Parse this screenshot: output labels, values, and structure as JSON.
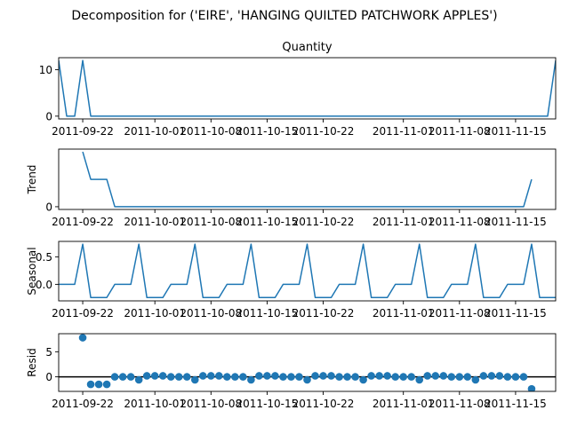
{
  "figure": {
    "suptitle": "Decomposition for ('EIRE', 'HANGING QUILTED PATCHWORK APPLES')"
  },
  "colors": {
    "line": "#1f77b4",
    "axis": "#000000",
    "background": "#ffffff"
  },
  "chart_data": [
    {
      "type": "line",
      "title": "Quantity",
      "ylabel": "",
      "x_start": "2011-09-19",
      "x_end": "2011-11-20",
      "xticks": [
        "2011-09-22",
        "2011-10-01",
        "2011-10-08",
        "2011-10-15",
        "2011-10-22",
        "2011-11-01",
        "2011-11-08",
        "2011-11-15"
      ],
      "yticks": [
        0,
        10
      ],
      "ylim": [
        -0.6,
        12.6
      ],
      "points": [
        [
          "2011-09-19",
          12
        ],
        [
          "2011-09-20",
          0
        ],
        [
          "2011-09-21",
          0
        ],
        [
          "2011-09-22",
          12
        ],
        [
          "2011-09-23",
          0
        ],
        [
          "2011-11-19",
          0
        ],
        [
          "2011-11-20",
          12
        ]
      ]
    },
    {
      "type": "line",
      "title": "",
      "ylabel": "Trend",
      "x_start": "2011-09-19",
      "x_end": "2011-11-20",
      "xticks": [
        "2011-09-22",
        "2011-10-01",
        "2011-10-08",
        "2011-10-15",
        "2011-10-22",
        "2011-11-01",
        "2011-11-08",
        "2011-11-15"
      ],
      "yticks": [
        0
      ],
      "ylim": [
        -0.17,
        3.6
      ],
      "points": [
        [
          "2011-09-22",
          3.43
        ],
        [
          "2011-09-23",
          1.71
        ],
        [
          "2011-09-24",
          1.71
        ],
        [
          "2011-09-25",
          1.71
        ],
        [
          "2011-09-26",
          0
        ],
        [
          "2011-11-16",
          0
        ],
        [
          "2011-11-17",
          1.71
        ]
      ]
    },
    {
      "type": "line",
      "title": "",
      "ylabel": "Seasonal",
      "x_start": "2011-09-19",
      "x_end": "2011-11-20",
      "xticks": [
        "2011-09-22",
        "2011-10-01",
        "2011-10-08",
        "2011-10-15",
        "2011-10-22",
        "2011-11-01",
        "2011-11-08",
        "2011-11-15"
      ],
      "yticks": [
        0.0,
        0.5
      ],
      "ylim": [
        -0.3,
        0.78
      ],
      "period": 7,
      "pattern": [
        0,
        0,
        0,
        0.73,
        -0.24,
        -0.24,
        -0.24
      ],
      "pattern_start": "2011-09-19"
    },
    {
      "type": "scatter",
      "title": "",
      "ylabel": "Resid",
      "x_start": "2011-09-19",
      "x_end": "2011-11-20",
      "xticks": [
        "2011-09-22",
        "2011-10-01",
        "2011-10-08",
        "2011-10-15",
        "2011-10-22",
        "2011-11-01",
        "2011-11-08",
        "2011-11-15"
      ],
      "yticks": [
        0,
        5
      ],
      "ylim": [
        -2.9,
        8.6
      ],
      "baseline": 0,
      "points": [
        [
          "2011-09-22",
          7.8
        ],
        [
          "2011-09-23",
          -1.5
        ],
        [
          "2011-09-24",
          -1.5
        ],
        [
          "2011-09-25",
          -1.5
        ],
        [
          "2011-09-26",
          0.0
        ],
        [
          "2011-09-27",
          0.0
        ],
        [
          "2011-09-28",
          0.0
        ],
        [
          "2011-09-29",
          -0.6
        ],
        [
          "2011-09-30",
          0.2
        ],
        [
          "2011-10-01",
          0.2
        ],
        [
          "2011-10-02",
          0.2
        ],
        [
          "2011-10-03",
          0.0
        ],
        [
          "2011-10-04",
          0.0
        ],
        [
          "2011-10-05",
          0.0
        ],
        [
          "2011-10-06",
          -0.6
        ],
        [
          "2011-10-07",
          0.2
        ],
        [
          "2011-10-08",
          0.2
        ],
        [
          "2011-10-09",
          0.2
        ],
        [
          "2011-10-10",
          0.0
        ],
        [
          "2011-10-11",
          0.0
        ],
        [
          "2011-10-12",
          0.0
        ],
        [
          "2011-10-13",
          -0.6
        ],
        [
          "2011-10-14",
          0.2
        ],
        [
          "2011-10-15",
          0.2
        ],
        [
          "2011-10-16",
          0.2
        ],
        [
          "2011-10-17",
          0.0
        ],
        [
          "2011-10-18",
          0.0
        ],
        [
          "2011-10-19",
          0.0
        ],
        [
          "2011-10-20",
          -0.6
        ],
        [
          "2011-10-21",
          0.2
        ],
        [
          "2011-10-22",
          0.2
        ],
        [
          "2011-10-23",
          0.2
        ],
        [
          "2011-10-24",
          0.0
        ],
        [
          "2011-10-25",
          0.0
        ],
        [
          "2011-10-26",
          0.0
        ],
        [
          "2011-10-27",
          -0.6
        ],
        [
          "2011-10-28",
          0.2
        ],
        [
          "2011-10-29",
          0.2
        ],
        [
          "2011-10-30",
          0.2
        ],
        [
          "2011-10-31",
          0.0
        ],
        [
          "2011-11-01",
          0.0
        ],
        [
          "2011-11-02",
          0.0
        ],
        [
          "2011-11-03",
          -0.6
        ],
        [
          "2011-11-04",
          0.2
        ],
        [
          "2011-11-05",
          0.2
        ],
        [
          "2011-11-06",
          0.2
        ],
        [
          "2011-11-07",
          0.0
        ],
        [
          "2011-11-08",
          0.0
        ],
        [
          "2011-11-09",
          0.0
        ],
        [
          "2011-11-10",
          -0.6
        ],
        [
          "2011-11-11",
          0.2
        ],
        [
          "2011-11-12",
          0.2
        ],
        [
          "2011-11-13",
          0.2
        ],
        [
          "2011-11-14",
          0.0
        ],
        [
          "2011-11-15",
          0.0
        ],
        [
          "2011-11-16",
          0.0
        ],
        [
          "2011-11-17",
          -2.4
        ]
      ]
    }
  ]
}
